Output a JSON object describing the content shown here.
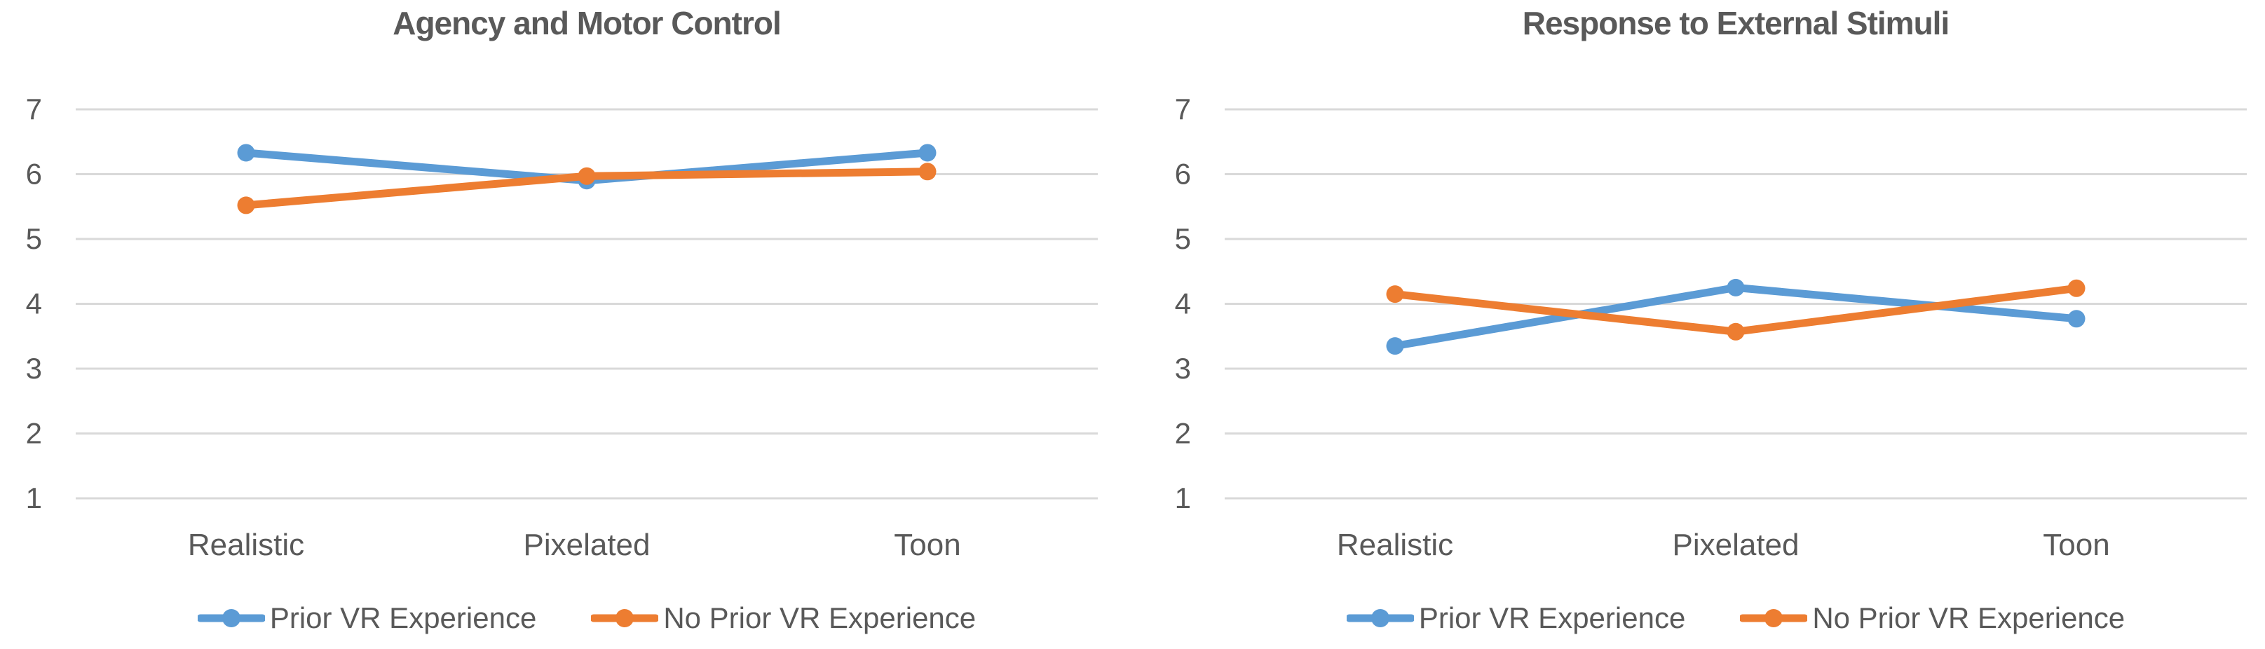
{
  "page": {
    "background_color": "#FFFFFF",
    "text_color": "#595959",
    "gridline_color": "#D9D9D9"
  },
  "chart_data": [
    {
      "type": "line",
      "title": "Agency and Motor Control",
      "categories": [
        "Realistic",
        "Pixelated",
        "Toon"
      ],
      "series": [
        {
          "name": "Prior VR Experience",
          "color": "#5B9BD5",
          "values": [
            6.33,
            5.9,
            6.33
          ]
        },
        {
          "name": "No Prior VR Experience",
          "color": "#ED7D31",
          "values": [
            5.52,
            5.97,
            6.04
          ]
        }
      ],
      "xlabel": "",
      "ylabel": "",
      "ylim": [
        1,
        7
      ],
      "yticks": [
        7,
        6,
        5,
        4,
        3,
        2,
        1
      ],
      "grid": true,
      "legend_position": "bottom",
      "markers": "circle"
    },
    {
      "type": "line",
      "title": "Response to External Stimuli",
      "categories": [
        "Realistic",
        "Pixelated",
        "Toon"
      ],
      "series": [
        {
          "name": "Prior VR Experience",
          "color": "#5B9BD5",
          "values": [
            3.35,
            4.25,
            3.77
          ]
        },
        {
          "name": "No Prior VR Experience",
          "color": "#ED7D31",
          "values": [
            4.15,
            3.57,
            4.24
          ]
        }
      ],
      "xlabel": "",
      "ylabel": "",
      "ylim": [
        1,
        7
      ],
      "yticks": [
        7,
        6,
        5,
        4,
        3,
        2,
        1
      ],
      "grid": true,
      "legend_position": "bottom",
      "markers": "circle"
    }
  ]
}
